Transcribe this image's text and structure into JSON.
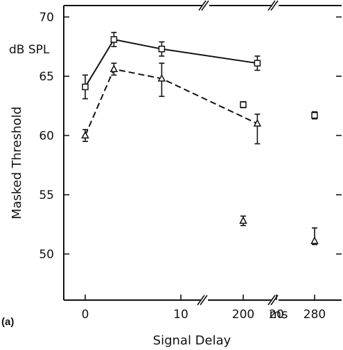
{
  "chart_data": {
    "type": "line",
    "panel_label": "(a)",
    "xlabel": "Signal Delay",
    "ylabel": "Masked Threshold",
    "y_unit_label": "dB SPL",
    "x_unit_label": "ms",
    "ylim": [
      46,
      71
    ],
    "x_axis_broken": true,
    "x_ticks": [
      0,
      10,
      20,
      200,
      280
    ],
    "x_tick_labels": [
      "0",
      "10",
      "20",
      "200",
      "280"
    ],
    "y_ticks": [
      50,
      55,
      60,
      65,
      70
    ],
    "y_tick_labels": [
      "50",
      "55",
      "60",
      "65",
      "70"
    ],
    "grid": false,
    "legend": "none",
    "series": [
      {
        "marker": "square",
        "line_style": "solid",
        "points": [
          {
            "x": 0,
            "y": 64.1,
            "err_low": 1.0,
            "err_high": 1.0,
            "connected": true
          },
          {
            "x": 3,
            "y": 68.1,
            "err_low": 0.6,
            "err_high": 0.6,
            "connected": true
          },
          {
            "x": 8,
            "y": 67.3,
            "err_low": 0.6,
            "err_high": 0.6,
            "connected": true
          },
          {
            "x": 18,
            "y": 66.1,
            "err_low": 0.6,
            "err_high": 0.6,
            "connected": true
          },
          {
            "x": 200,
            "y": 62.6,
            "err_low": 0.25,
            "err_high": 0.25,
            "connected": false
          },
          {
            "x": 280,
            "y": 61.7,
            "err_low": 0.3,
            "err_high": 0.3,
            "connected": false
          }
        ]
      },
      {
        "marker": "triangle",
        "line_style": "dashed",
        "points": [
          {
            "x": 0,
            "y": 60.0,
            "err_low": 0.5,
            "err_high": 0.5,
            "connected": true
          },
          {
            "x": 3,
            "y": 65.6,
            "err_low": 0.5,
            "err_high": 0.5,
            "connected": true
          },
          {
            "x": 8,
            "y": 64.8,
            "err_low": 1.5,
            "err_high": 1.3,
            "connected": true
          },
          {
            "x": 18,
            "y": 61.0,
            "err_low": 1.7,
            "err_high": 0.8,
            "connected": true
          },
          {
            "x": 200,
            "y": 52.8,
            "err_low": 0.4,
            "err_high": 0.4,
            "connected": false
          },
          {
            "x": 280,
            "y": 51.1,
            "err_low": 0.3,
            "err_high": 1.1,
            "connected": false
          }
        ]
      }
    ]
  }
}
